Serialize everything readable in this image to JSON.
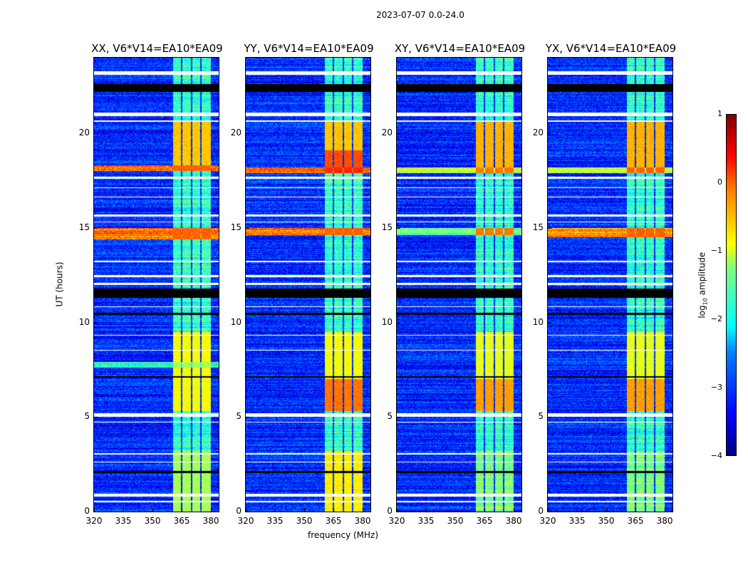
{
  "suptitle": "2023-07-07 0.0-24.0",
  "xlabel": "frequency (MHz)",
  "ylabel": "UT (hours)",
  "colorbar": {
    "label": "log10 amplitude",
    "label_main": "log",
    "label_sub": "10",
    "label_rest": " amplitude",
    "ticks": [
      "1",
      "0",
      "−1",
      "−2",
      "−3",
      "−4"
    ],
    "tick_values": [
      1,
      0,
      -1,
      -2,
      -3,
      -4
    ],
    "range": [
      -4,
      1
    ],
    "cmap": "jet"
  },
  "chart_data": {
    "type": "heatmap",
    "xlim": [
      320,
      384
    ],
    "ylim": [
      0,
      24
    ],
    "xticks": [
      320,
      335,
      350,
      365,
      380
    ],
    "xtick_labels": [
      "320",
      "335",
      "350",
      "365",
      "380"
    ],
    "yticks": [
      0,
      5,
      10,
      15,
      20
    ],
    "ytick_labels": [
      "0",
      "5",
      "10",
      "15",
      "20"
    ],
    "band_edges_mhz": [
      [
        360.5,
        364.6
      ],
      [
        365.4,
        369.6
      ],
      [
        370.4,
        374.6
      ],
      [
        375.4,
        380
      ]
    ],
    "background_level": -3.2,
    "flagged_hours_white": [
      [
        23.1,
        23.3
      ],
      [
        20.9,
        21.1
      ],
      [
        20.6,
        20.7
      ],
      [
        17.6,
        17.7
      ],
      [
        17.1,
        17.15
      ],
      [
        16.6,
        16.65
      ],
      [
        15.6,
        15.7
      ],
      [
        15.3,
        15.35
      ],
      [
        13.2,
        13.25
      ],
      [
        12.4,
        12.5
      ],
      [
        12.0,
        12.1
      ],
      [
        10.8,
        10.85
      ],
      [
        9.3,
        9.35
      ],
      [
        8.5,
        8.55
      ],
      [
        5.0,
        5.2
      ],
      [
        4.7,
        4.75
      ],
      [
        3.0,
        3.1
      ],
      [
        2.6,
        2.65
      ],
      [
        0.8,
        0.95
      ],
      [
        0.5,
        0.55
      ]
    ],
    "blank_hours_black": [
      [
        22.2,
        22.6
      ],
      [
        11.3,
        11.8
      ],
      [
        10.4,
        10.5
      ],
      [
        7.1,
        7.15
      ],
      [
        2.05,
        2.15
      ]
    ],
    "panels": [
      {
        "title": "XX, V6*V14=EA10*EA09",
        "segments": [
          [
            18.0,
            18.3,
            -0.2,
            -0.1
          ],
          [
            18.3,
            20.6,
            -3.2,
            -0.6
          ],
          [
            14.4,
            15.0,
            -0.1,
            -0.1
          ],
          [
            7.6,
            7.9,
            -2.0,
            -1.3
          ],
          [
            5.3,
            9.5,
            -3.2,
            -0.9
          ],
          [
            0,
            3.2,
            -3.2,
            -1.3
          ],
          [
            9.5,
            24,
            -3.2,
            -1.9
          ],
          [
            3.2,
            5.3,
            -3.2,
            -1.9
          ]
        ]
      },
      {
        "title": "YY, V6*V14=EA10*EA09",
        "segments": [
          [
            17.9,
            18.2,
            -0.2,
            0.2
          ],
          [
            18.2,
            19.1,
            -3.2,
            0.0
          ],
          [
            19.1,
            20.6,
            -3.2,
            -0.6
          ],
          [
            14.6,
            15.0,
            -0.3,
            -0.1
          ],
          [
            5.3,
            7.0,
            -3.2,
            -0.2
          ],
          [
            7.0,
            9.5,
            -3.2,
            -0.9
          ],
          [
            0,
            3.2,
            -3.2,
            -0.8
          ],
          [
            9.5,
            24,
            -3.2,
            -1.9
          ],
          [
            3.2,
            5.3,
            -3.2,
            -1.9
          ]
        ]
      },
      {
        "title": "XY, V6*V14=EA10*EA09",
        "segments": [
          [
            14.6,
            15.0,
            -1.6,
            -0.2
          ],
          [
            17.9,
            18.2,
            -1.2,
            -0.2
          ],
          [
            18.2,
            20.6,
            -3.2,
            -0.5
          ],
          [
            5.3,
            7.0,
            -3.2,
            -0.4
          ],
          [
            7.0,
            9.5,
            -3.2,
            -1.0
          ],
          [
            0,
            3.2,
            -3.2,
            -1.5
          ],
          [
            9.5,
            24,
            -3.2,
            -1.9
          ],
          [
            3.2,
            5.3,
            -3.2,
            -1.9
          ]
        ]
      },
      {
        "title": "YX, V6*V14=EA10*EA09",
        "segments": [
          [
            14.5,
            15.0,
            -0.4,
            -0.1
          ],
          [
            17.9,
            18.2,
            -1.0,
            -0.1
          ],
          [
            18.2,
            20.6,
            -3.2,
            -0.5
          ],
          [
            5.3,
            7.0,
            -3.2,
            -0.4
          ],
          [
            7.0,
            9.5,
            -3.2,
            -1.0
          ],
          [
            0,
            3.2,
            -3.2,
            -1.5
          ],
          [
            9.5,
            24,
            -3.2,
            -1.9
          ],
          [
            3.2,
            5.3,
            -3.2,
            -1.9
          ]
        ]
      }
    ]
  }
}
